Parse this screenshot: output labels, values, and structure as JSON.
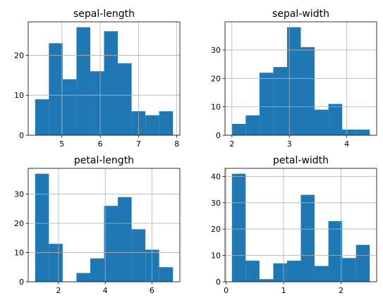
{
  "colors": {
    "bar": "#1f77b4",
    "grid": "#b0b0b0",
    "axis": "#000000"
  },
  "chart_data": [
    {
      "type": "bar",
      "title": "sepal-length",
      "grid": true,
      "bin_edges": [
        4.3,
        4.66,
        5.02,
        5.38,
        5.74,
        6.1,
        6.46,
        6.82,
        7.18,
        7.54,
        7.9
      ],
      "values": [
        9,
        23,
        14,
        27,
        16,
        26,
        18,
        6,
        5,
        6
      ],
      "xlim": [
        4.12,
        8.08
      ],
      "ylim": [
        0,
        28.35
      ],
      "xticks": [
        5,
        6,
        7,
        8
      ],
      "yticks": [
        0,
        10,
        20
      ]
    },
    {
      "type": "bar",
      "title": "sepal-width",
      "grid": true,
      "bin_edges": [
        2.0,
        2.24,
        2.48,
        2.72,
        2.96,
        3.2,
        3.44,
        3.68,
        3.92,
        4.16,
        4.4
      ],
      "values": [
        4,
        7,
        22,
        24,
        38,
        31,
        9,
        11,
        2,
        2
      ],
      "xlim": [
        1.88,
        4.52
      ],
      "ylim": [
        0,
        39.9
      ],
      "xticks": [
        2,
        3,
        4
      ],
      "yticks": [
        0,
        10,
        20,
        30
      ]
    },
    {
      "type": "bar",
      "title": "petal-length",
      "grid": true,
      "bin_edges": [
        1.0,
        1.59,
        2.18,
        2.77,
        3.36,
        3.95,
        4.54,
        5.13,
        5.72,
        6.31,
        6.9
      ],
      "values": [
        37,
        13,
        0,
        3,
        8,
        26,
        29,
        18,
        11,
        5
      ],
      "xlim": [
        0.705,
        7.195
      ],
      "ylim": [
        0,
        38.85
      ],
      "xticks": [
        2,
        4,
        6
      ],
      "yticks": [
        0,
        10,
        20,
        30
      ]
    },
    {
      "type": "bar",
      "title": "petal-width",
      "grid": true,
      "bin_edges": [
        0.1,
        0.34,
        0.58,
        0.82,
        1.06,
        1.3,
        1.54,
        1.78,
        2.02,
        2.26,
        2.5
      ],
      "values": [
        41,
        8,
        1,
        7,
        8,
        33,
        6,
        23,
        9,
        14
      ],
      "xlim": [
        -0.02,
        2.62
      ],
      "ylim": [
        0,
        43.05
      ],
      "xticks": [
        0,
        1,
        2
      ],
      "yticks": [
        0,
        10,
        20,
        30,
        40
      ]
    }
  ]
}
